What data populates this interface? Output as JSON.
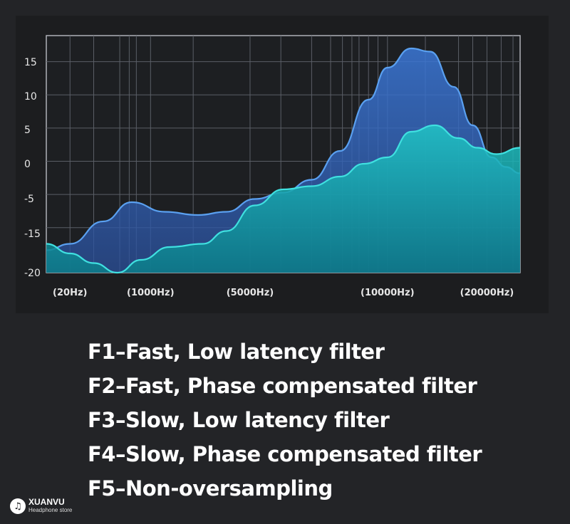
{
  "chart_data": {
    "type": "area",
    "y_ticks": [
      "15",
      "10",
      "5",
      "0",
      "-5",
      "-15",
      "-20"
    ],
    "x_labels": [
      "(20Hz)",
      "(1000Hz)",
      "(5000Hz)",
      "(10000Hz)",
      "(20000Hz)"
    ],
    "x_label_positions": [
      0.05,
      0.22,
      0.43,
      0.72,
      0.93
    ],
    "ylim": [
      -20,
      17
    ],
    "grid": true,
    "series": [
      {
        "color": "#3f7fe0",
        "x": [
          0.0,
          0.05,
          0.12,
          0.18,
          0.25,
          0.32,
          0.38,
          0.44,
          0.5,
          0.56,
          0.62,
          0.68,
          0.72,
          0.77,
          0.81,
          0.86,
          0.9,
          0.94,
          0.97,
          1.0
        ],
        "y": [
          -16.5,
          -15.5,
          -12,
          -9,
          -10.5,
          -11,
          -10.5,
          -8.5,
          -7.5,
          -5.5,
          -1,
          7,
          12,
          15,
          14.5,
          9,
          3,
          -2,
          -3.5,
          -4.5
        ]
      },
      {
        "color": "#1ec8c8",
        "x": [
          0.0,
          0.05,
          0.1,
          0.15,
          0.2,
          0.26,
          0.33,
          0.38,
          0.44,
          0.5,
          0.56,
          0.62,
          0.67,
          0.72,
          0.77,
          0.82,
          0.87,
          0.91,
          0.95,
          1.0
        ],
        "y": [
          -15.5,
          -17,
          -18.5,
          -20,
          -18,
          -16,
          -15.5,
          -13.5,
          -9.5,
          -7,
          -6.5,
          -5,
          -3,
          -2,
          2,
          3,
          1,
          -0.5,
          -1.5,
          -0.5
        ]
      }
    ]
  },
  "filters": [
    "F1–Fast, Low latency filter",
    "F2–Fast, Phase compensated filter",
    "F3–Slow, Low latency filter",
    "F4–Slow, Phase compensated filter",
    "F5–Non-oversampling"
  ],
  "logo": {
    "name": "XUANVU",
    "subtitle": "Headphone store"
  }
}
